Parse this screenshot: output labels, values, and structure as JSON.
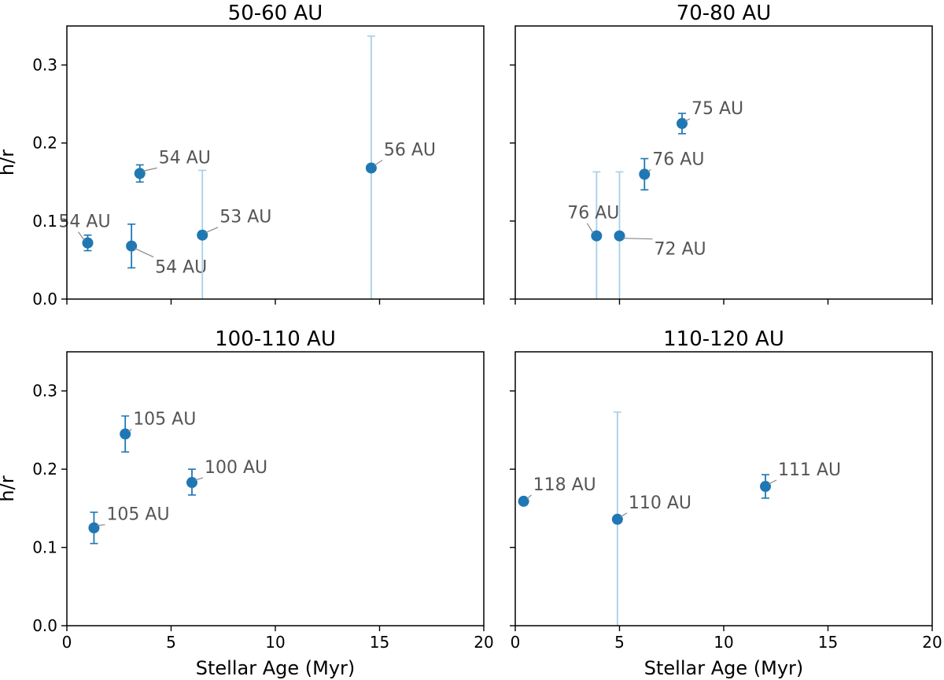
{
  "figure": {
    "xlabel": "Stellar Age (Myr)",
    "ylabel": "h/r",
    "xticks": [
      "0",
      "5",
      "10",
      "15",
      "20"
    ],
    "yticks": [
      "0.0",
      "0.1",
      "0.2",
      "0.3"
    ],
    "colors": {
      "point": "#1f77b4",
      "errorbar": "#1f77b4",
      "large_errorbar": "#a6cfe8",
      "annotation": "#555555",
      "leader": "#888888"
    }
  },
  "chart_data": [
    {
      "type": "scatter",
      "title": "50-60 AU",
      "xlabel": "",
      "ylabel": "h/r",
      "xlim": [
        0,
        20
      ],
      "ylim": [
        0,
        0.35
      ],
      "points": [
        {
          "x": 1.0,
          "y": 0.072,
          "err_lo": 0.062,
          "err_hi": 0.082,
          "label": "54 AU"
        },
        {
          "x": 3.1,
          "y": 0.068,
          "err_lo": 0.04,
          "err_hi": 0.096,
          "label": "54 AU"
        },
        {
          "x": 3.5,
          "y": 0.161,
          "err_lo": 0.15,
          "err_hi": 0.172,
          "label": "54 AU"
        },
        {
          "x": 6.5,
          "y": 0.082,
          "err_lo": 0.0,
          "err_hi": 0.165,
          "label": "53 AU"
        },
        {
          "x": 14.6,
          "y": 0.168,
          "err_lo": 0.0,
          "err_hi": 0.337,
          "label": "56 AU"
        }
      ]
    },
    {
      "type": "scatter",
      "title": "70-80 AU",
      "xlabel": "",
      "ylabel": "",
      "xlim": [
        0,
        20
      ],
      "ylim": [
        0,
        0.35
      ],
      "points": [
        {
          "x": 8.0,
          "y": 0.225,
          "err_lo": 0.212,
          "err_hi": 0.238,
          "label": "75 AU"
        },
        {
          "x": 6.2,
          "y": 0.16,
          "err_lo": 0.14,
          "err_hi": 0.18,
          "label": "76 AU"
        },
        {
          "x": 3.9,
          "y": 0.081,
          "err_lo": 0.0,
          "err_hi": 0.163,
          "label": "76 AU"
        },
        {
          "x": 5.0,
          "y": 0.081,
          "err_lo": 0.0,
          "err_hi": 0.163,
          "label": "72 AU"
        }
      ]
    },
    {
      "type": "scatter",
      "title": "100-110 AU",
      "xlabel": "Stellar Age (Myr)",
      "ylabel": "h/r",
      "xlim": [
        0,
        20
      ],
      "ylim": [
        0,
        0.35
      ],
      "points": [
        {
          "x": 2.8,
          "y": 0.245,
          "err_lo": 0.222,
          "err_hi": 0.268,
          "label": "105 AU"
        },
        {
          "x": 6.0,
          "y": 0.183,
          "err_lo": 0.167,
          "err_hi": 0.2,
          "label": "100 AU"
        },
        {
          "x": 1.3,
          "y": 0.125,
          "err_lo": 0.105,
          "err_hi": 0.145,
          "label": "105 AU"
        }
      ]
    },
    {
      "type": "scatter",
      "title": "110-120 AU",
      "xlabel": "Stellar Age (Myr)",
      "ylabel": "",
      "xlim": [
        0,
        20
      ],
      "ylim": [
        0,
        0.35
      ],
      "points": [
        {
          "x": 0.4,
          "y": 0.159,
          "err_lo": 0.155,
          "err_hi": 0.163,
          "label": "118 AU"
        },
        {
          "x": 4.9,
          "y": 0.136,
          "err_lo": 0.0,
          "err_hi": 0.273,
          "label": "110 AU"
        },
        {
          "x": 12.0,
          "y": 0.178,
          "err_lo": 0.163,
          "err_hi": 0.193,
          "label": "111 AU"
        }
      ]
    }
  ]
}
